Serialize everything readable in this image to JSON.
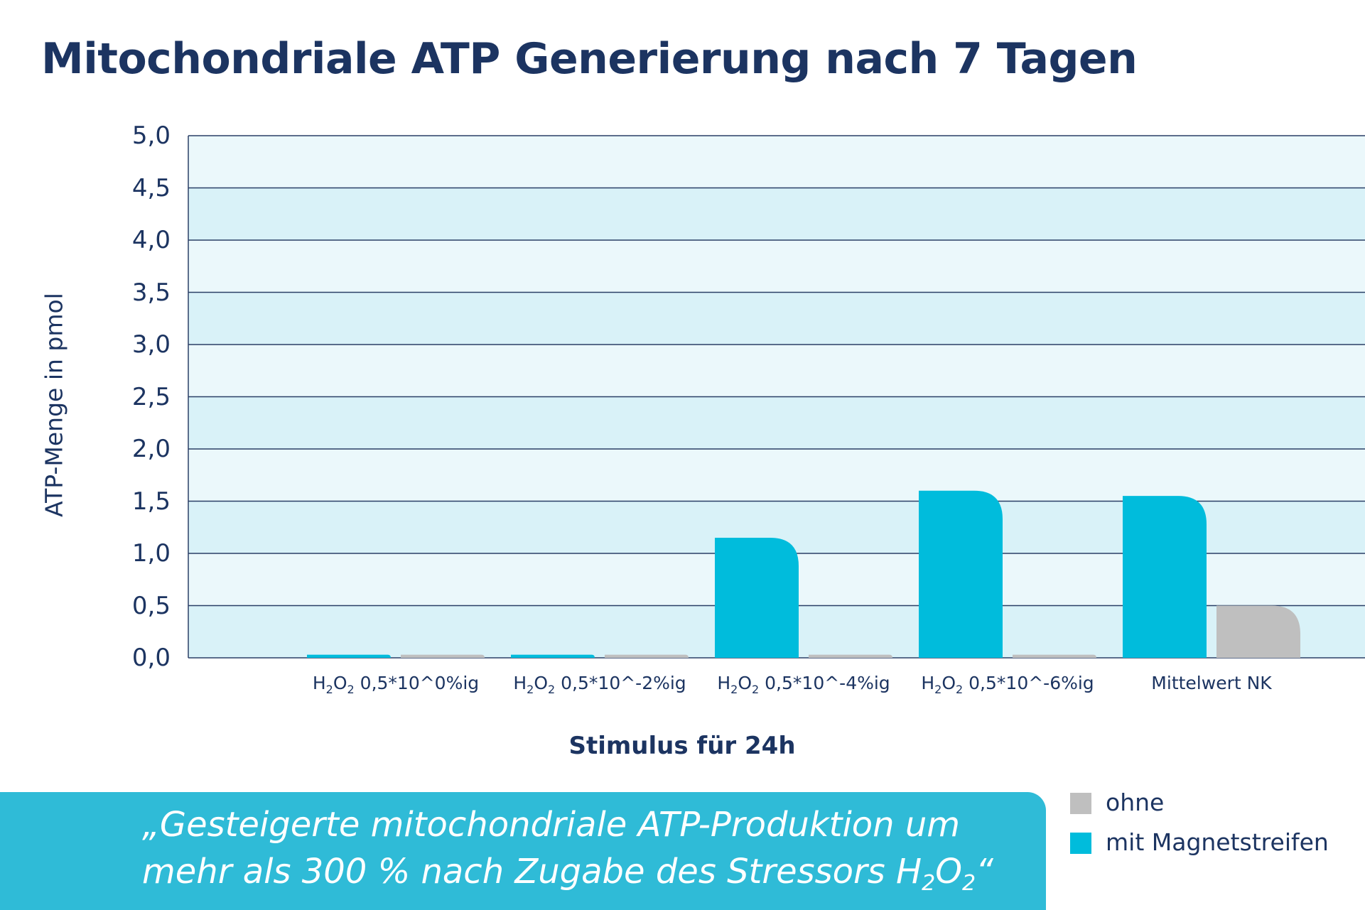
{
  "title": "Mitochondriale ATP Generierung nach 7 Tagen",
  "chart_data": {
    "type": "bar",
    "title": "Mitochondriale ATP Generierung nach 7 Tagen",
    "xlabel": "Stimulus für 24h",
    "ylabel": "ATP-Menge in pmol",
    "ylim": [
      0,
      5
    ],
    "yticks": [
      "0,0",
      "0,5",
      "1,0",
      "1,5",
      "2,0",
      "2,5",
      "3,0",
      "3,5",
      "4,0",
      "4,5",
      "5,0"
    ],
    "categories": [
      {
        "main": "H",
        "sub1": "2",
        "mid": "O",
        "sub2": "2",
        "rest": " 0,5*10^0%ig"
      },
      {
        "main": "H",
        "sub1": "2",
        "mid": "O",
        "sub2": "2",
        "rest": " 0,5*10^-2%ig"
      },
      {
        "main": "H",
        "sub1": "2",
        "mid": "O",
        "sub2": "2",
        "rest": " 0,5*10^-4%ig"
      },
      {
        "main": "H",
        "sub1": "2",
        "mid": "O",
        "sub2": "2",
        "rest": " 0,5*10^-6%ig"
      },
      {
        "main": "Mittelwert NK",
        "sub1": "",
        "mid": "",
        "sub2": "",
        "rest": ""
      }
    ],
    "series": [
      {
        "name": "mit Magnetstreifen",
        "color": "#00bcdc",
        "values": [
          0.03,
          0.03,
          1.15,
          1.6,
          1.55
        ]
      },
      {
        "name": "ohne",
        "color": "#bfbfbf",
        "values": [
          0.03,
          0.03,
          0.03,
          0.03,
          0.5
        ]
      }
    ],
    "legend": [
      {
        "name": "ohne",
        "color": "#bfbfbf"
      },
      {
        "name": "mit Magnetstreifen",
        "color": "#00bcdc"
      }
    ],
    "legend_position": "bottom-right"
  },
  "quote": {
    "line1": "„Gesteigerte mitochondriale ATP-Produktion um",
    "line2_text": "mehr als 300 % nach Zugabe des Stressors H",
    "line2_sub1": "2",
    "line2_mid": "O",
    "line2_sub2": "2",
    "line2_end": "“"
  },
  "colors": {
    "title": "#1c3461",
    "band_light": "#ebf8fb",
    "band_dark": "#d9f2f8",
    "banner": "#2fbbd7"
  }
}
